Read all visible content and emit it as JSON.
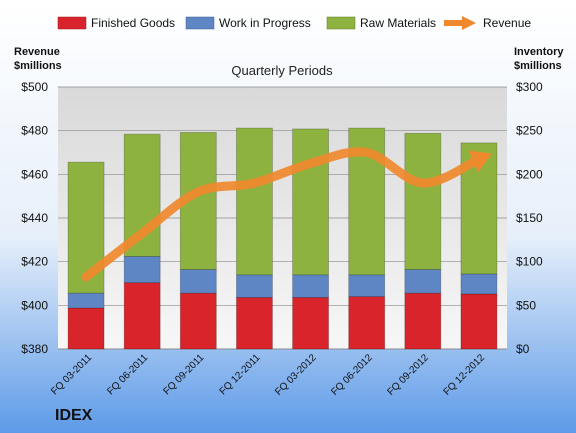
{
  "chart_data": {
    "type": "bar",
    "subtitle": "Quarterly Periods",
    "company": "IDEX",
    "left_axis_label": [
      "Revenue",
      "$millions"
    ],
    "right_axis_label": [
      "Inventory",
      "$millions"
    ],
    "categories": [
      "FQ 03-2011",
      "FQ 06-2011",
      "FQ 09-2011",
      "FQ 12-2011",
      "FQ 03-2012",
      "FQ 06-2012",
      "FQ 09-2012",
      "FQ 12-2012"
    ],
    "stacked": true,
    "series": [
      {
        "name": "Finished Goods",
        "axis": "right",
        "color": "#d9242b",
        "values": [
          47,
          76,
          64,
          59,
          59,
          60,
          64,
          63
        ]
      },
      {
        "name": "Work in Progress",
        "axis": "right",
        "color": "#5e86c5",
        "values": [
          17,
          30,
          27,
          26,
          26,
          25,
          27,
          23
        ]
      },
      {
        "name": "Raw Materials",
        "axis": "right",
        "color": "#8db23f",
        "values": [
          150,
          140,
          157,
          168,
          167,
          168,
          156,
          150
        ]
      },
      {
        "name": "Revenue",
        "axis": "left",
        "type": "line",
        "color": "#f0892e",
        "values": [
          413,
          433,
          452,
          456,
          465,
          470,
          456,
          467
        ]
      }
    ],
    "left_axis": {
      "min": 380,
      "max": 500,
      "step": 20,
      "ticks": [
        "$380",
        "$400",
        "$420",
        "$440",
        "$460",
        "$480",
        "$500"
      ]
    },
    "right_axis": {
      "min": 0,
      "max": 300,
      "step": 50,
      "ticks": [
        "$0",
        "$50",
        "$100",
        "$150",
        "$200",
        "$250",
        "$300"
      ]
    },
    "grid": true,
    "legend": "top"
  }
}
